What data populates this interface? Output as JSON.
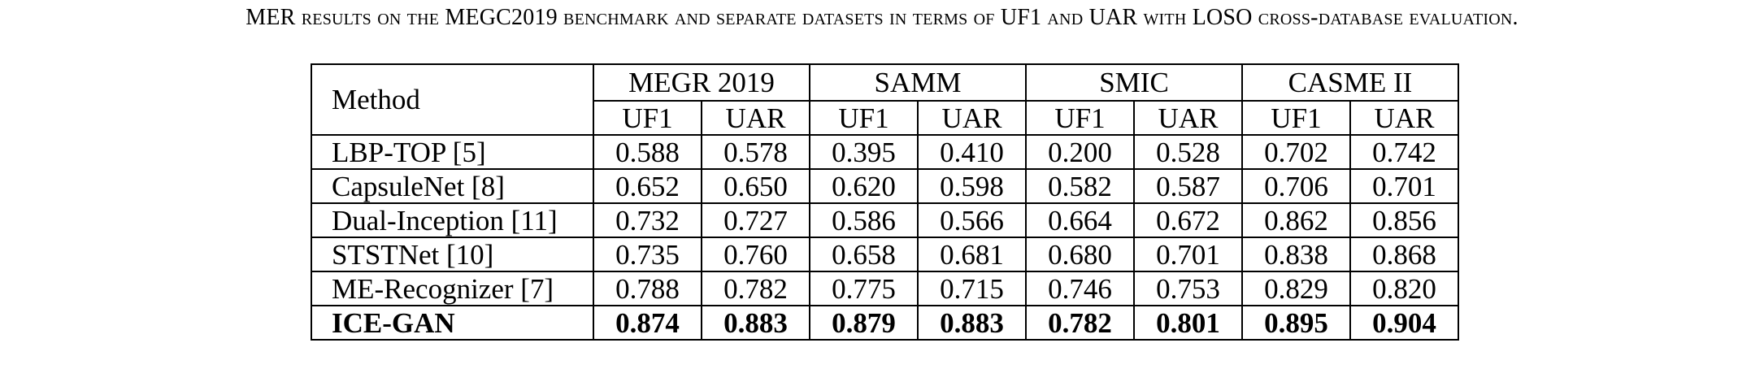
{
  "caption": {
    "pre": "MER ",
    "sc1": "results on the ",
    "bench": "MEGC2019",
    "sc2": " benchmark and separate datasets in terms of ",
    "m1": "UF1",
    "sc3": " and ",
    "m2": "UAR",
    "sc4": " with ",
    "proto": "LOSO",
    "sc5": " cross-database evaluation."
  },
  "table": {
    "method_header": "Method",
    "groups": [
      "MEGR 2019",
      "SAMM",
      "SMIC",
      "CASME II"
    ],
    "subheaders": [
      "UF1",
      "UAR",
      "UF1",
      "UAR",
      "UF1",
      "UAR",
      "UF1",
      "UAR"
    ],
    "rows": [
      {
        "method": "LBP-TOP [5]",
        "values": [
          "0.588",
          "0.578",
          "0.395",
          "0.410",
          "0.200",
          "0.528",
          "0.702",
          "0.742"
        ]
      },
      {
        "method": "CapsuleNet [8]",
        "values": [
          "0.652",
          "0.650",
          "0.620",
          "0.598",
          "0.582",
          "0.587",
          "0.706",
          "0.701"
        ]
      },
      {
        "method": "Dual-Inception [11]",
        "values": [
          "0.732",
          "0.727",
          "0.586",
          "0.566",
          "0.664",
          "0.672",
          "0.862",
          "0.856"
        ]
      },
      {
        "method": "STSTNet [10]",
        "values": [
          "0.735",
          "0.760",
          "0.658",
          "0.681",
          "0.680",
          "0.701",
          "0.838",
          "0.868"
        ]
      },
      {
        "method": "ME-Recognizer [7]",
        "values": [
          "0.788",
          "0.782",
          "0.775",
          "0.715",
          "0.746",
          "0.753",
          "0.829",
          "0.820"
        ]
      },
      {
        "method": "ICE-GAN",
        "values": [
          "0.874",
          "0.883",
          "0.879",
          "0.883",
          "0.782",
          "0.801",
          "0.895",
          "0.904"
        ]
      }
    ]
  }
}
